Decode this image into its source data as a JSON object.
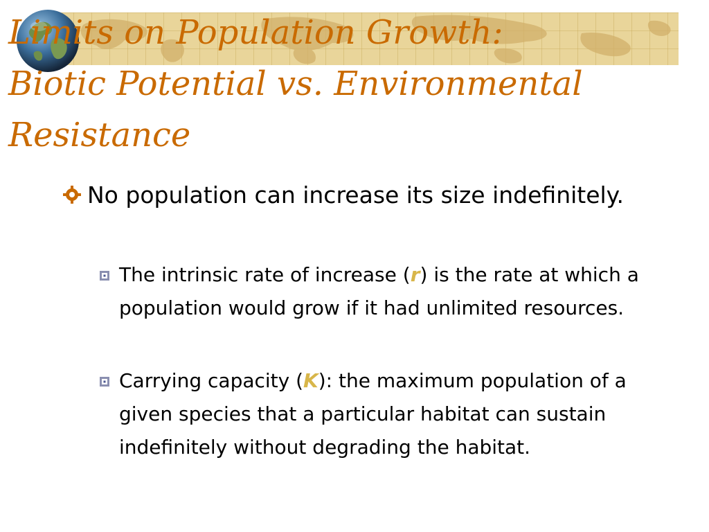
{
  "slide": {
    "title_lines": [
      "Limits on Population Growth:",
      "Biotic Potential vs. Environmental",
      "Resistance"
    ],
    "bullets": [
      {
        "text": "No population can increase its size indefinitely.",
        "sub": [
          {
            "before": "The intrinsic rate of increase (",
            "emphasis": "r",
            "after": ") is the rate at which a population would grow if it had unlimited resources."
          },
          {
            "before": "Carrying capacity (",
            "emphasis": "K",
            "after": "): the maximum population of a given species that a particular habitat can sustain indefinitely without degrading the habitat."
          }
        ]
      }
    ]
  },
  "icons": {
    "banner": "world-map-banner",
    "globe": "globe-icon",
    "level1_bullet": "gear-bullet-icon",
    "level2_bullet": "square-bullet-icon"
  },
  "colors": {
    "title": "#c96a00",
    "emphasis": "#d8b64a",
    "banner": "#e9d59a",
    "body_text": "#000000",
    "background": "#ffffff"
  }
}
